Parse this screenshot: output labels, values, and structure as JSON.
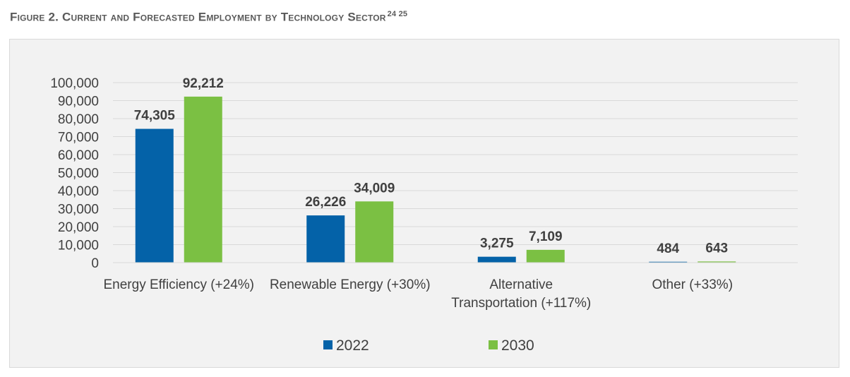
{
  "figure": {
    "label": "Figure 2. Current and Forecasted Employment by Technology Sector",
    "superscripts": "24 25"
  },
  "colors": {
    "series_2022": "#0462a8",
    "series_2030": "#7bc043",
    "grid": "#d9d9d9",
    "frame_bg": "#f2f2f2"
  },
  "chart_data": {
    "type": "bar",
    "title": "",
    "xlabel": "",
    "ylabel": "",
    "ylim": [
      0,
      100000
    ],
    "yticks": [
      "0",
      "10,000",
      "20,000",
      "30,000",
      "40,000",
      "50,000",
      "60,000",
      "70,000",
      "80,000",
      "90,000",
      "100,000"
    ],
    "ytick_values": [
      0,
      10000,
      20000,
      30000,
      40000,
      50000,
      60000,
      70000,
      80000,
      90000,
      100000
    ],
    "grid": true,
    "legend_position": "bottom",
    "categories": [
      [
        "Energy Efficiency (+24%)"
      ],
      [
        "Renewable Energy (+30%)"
      ],
      [
        "Alternative",
        "Transportation (+117%)"
      ],
      [
        "Other (+33%)"
      ]
    ],
    "series": [
      {
        "name": "2022",
        "values": [
          74305,
          26226,
          3275,
          484
        ],
        "labels": [
          "74,305",
          "26,226",
          "3,275",
          "484"
        ]
      },
      {
        "name": "2030",
        "values": [
          92212,
          34009,
          7109,
          643
        ],
        "labels": [
          "92,212",
          "34,009",
          "7,109",
          "643"
        ]
      }
    ]
  }
}
